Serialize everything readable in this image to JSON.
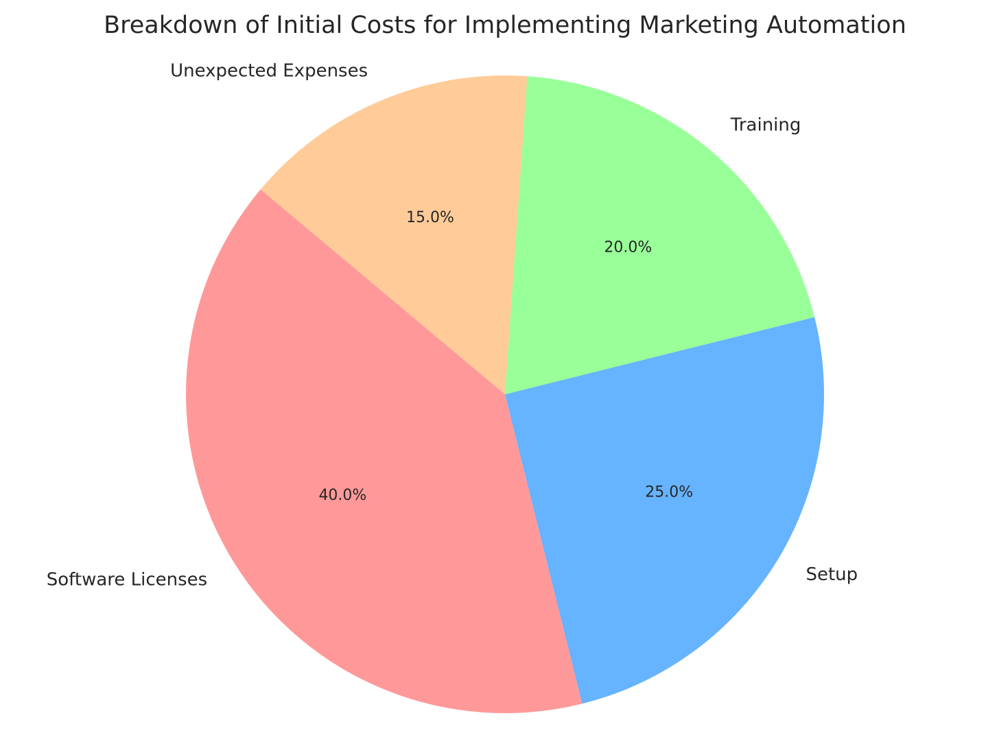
{
  "chart_data": {
    "type": "pie",
    "title": "Breakdown of Initial Costs for Implementing Marketing Automation",
    "categories": [
      "Software Licenses",
      "Setup",
      "Training",
      "Unexpected Expenses"
    ],
    "values": [
      40,
      25,
      20,
      15
    ],
    "value_labels": [
      "40.0%",
      "25.0%",
      "20.0%",
      "15.0%"
    ],
    "colors": [
      "#ff9999",
      "#66b3ff",
      "#99ff99",
      "#ffcc99"
    ]
  }
}
